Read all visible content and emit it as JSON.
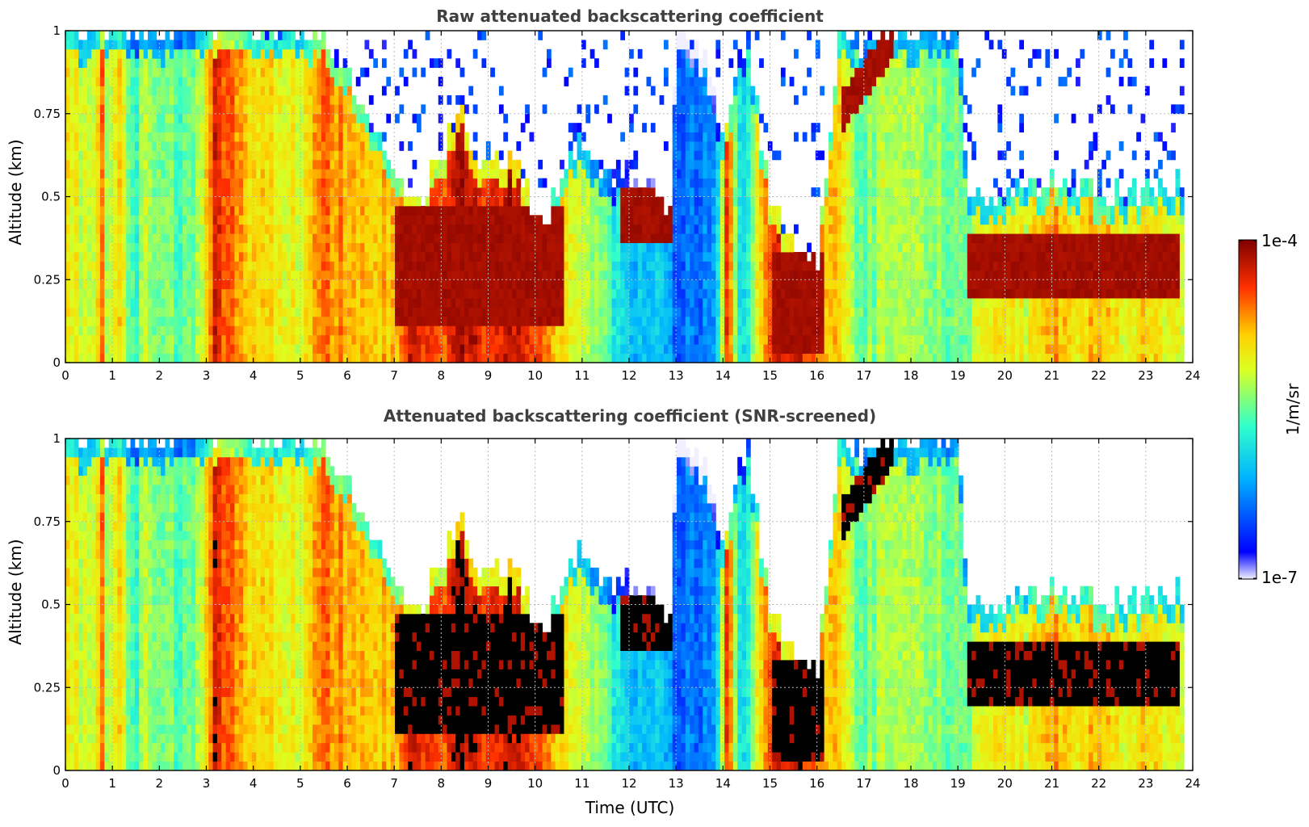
{
  "chart_data": [
    {
      "type": "heatmap",
      "title": "Raw attenuated backscattering coefficient",
      "xlabel": "",
      "ylabel": "Altitude (km)",
      "xlim": [
        0,
        24
      ],
      "ylim": [
        0,
        1
      ],
      "xticks": [
        "0",
        "1",
        "2",
        "3",
        "4",
        "5",
        "6",
        "7",
        "8",
        "9",
        "10",
        "11",
        "12",
        "13",
        "14",
        "15",
        "16",
        "17",
        "18",
        "19",
        "20",
        "21",
        "22",
        "23",
        "24"
      ],
      "yticks": [
        "0",
        "0.25",
        "0.5",
        "0.75",
        "1"
      ],
      "grid": true,
      "screened": false,
      "data_end_hour": 23.8
    },
    {
      "type": "heatmap",
      "title": "Attenuated backscattering coefficient (SNR-screened)",
      "xlabel": "Time (UTC)",
      "ylabel": "Altitude (km)",
      "xlim": [
        0,
        24
      ],
      "ylim": [
        0,
        1
      ],
      "xticks": [
        "0",
        "1",
        "2",
        "3",
        "4",
        "5",
        "6",
        "7",
        "8",
        "9",
        "10",
        "11",
        "12",
        "13",
        "14",
        "15",
        "16",
        "17",
        "18",
        "19",
        "20",
        "21",
        "22",
        "23",
        "24"
      ],
      "yticks": [
        "0",
        "0.25",
        "0.5",
        "0.75",
        "1"
      ],
      "grid": true,
      "screened": true,
      "data_end_hour": 23.8
    }
  ],
  "colorbar": {
    "label": "1/m/sr",
    "max_label": "1e-4",
    "min_label": "1e-7",
    "colormap": "jet",
    "scale": "log"
  }
}
